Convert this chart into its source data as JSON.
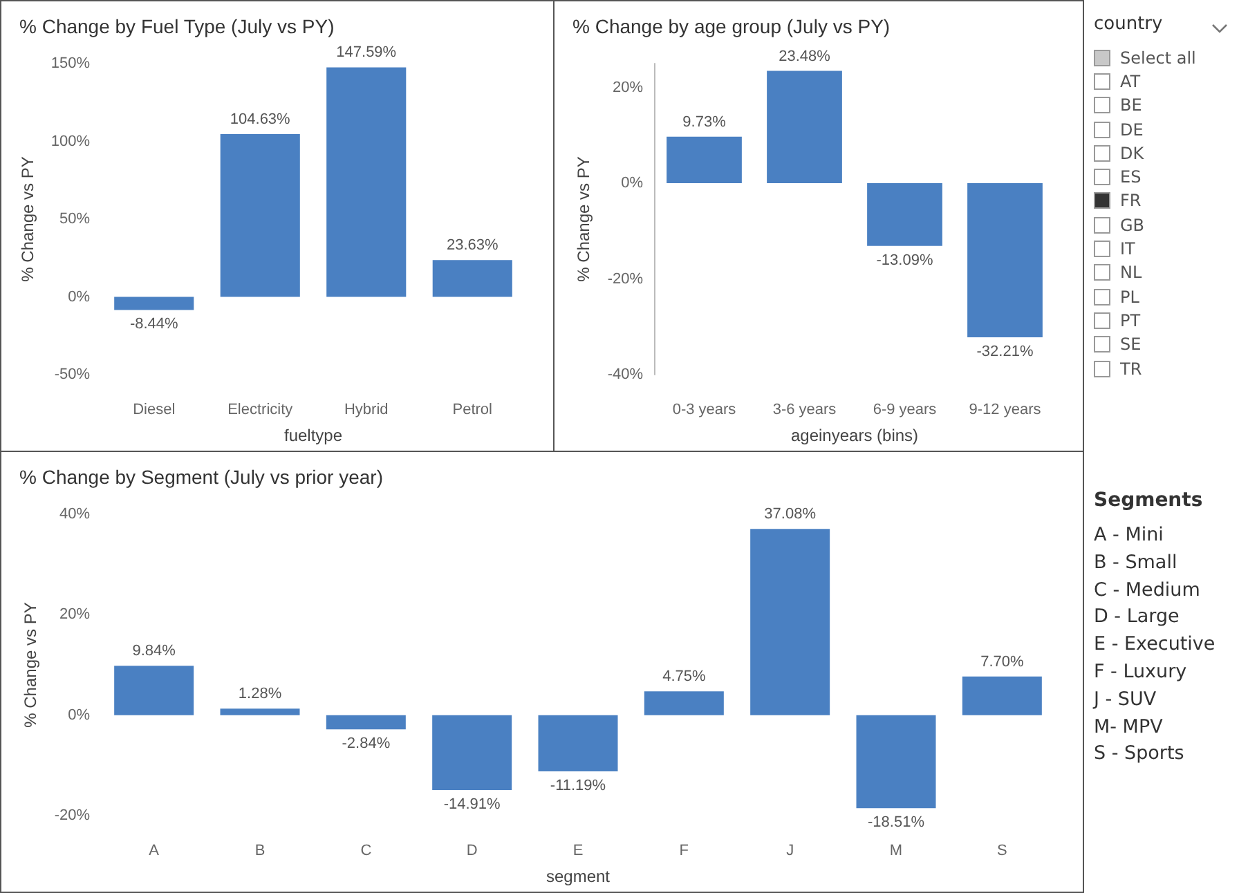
{
  "chart_data": [
    {
      "type": "bar",
      "title": "% Change by Fuel Type (July vs PY)",
      "xlabel": "fueltype",
      "ylabel": "% Change vs PY",
      "categories": [
        "Diesel",
        "Electricity",
        "Hybrid",
        "Petrol"
      ],
      "values": [
        -8.44,
        104.63,
        147.59,
        23.63
      ],
      "value_labels": [
        "-8.44%",
        "104.63%",
        "147.59%",
        "23.63%"
      ],
      "color": "#4a80c2",
      "ylim": [
        -50,
        150
      ],
      "yticks": [
        {
          "value": -50,
          "label": "-50%"
        },
        {
          "value": 0,
          "label": "0%"
        },
        {
          "value": 50,
          "label": "50%"
        },
        {
          "value": 100,
          "label": "100%"
        },
        {
          "value": 150,
          "label": "150%"
        }
      ],
      "grid": false
    },
    {
      "type": "bar",
      "title": "% Change by age group (July vs PY)",
      "xlabel": "ageinyears (bins)",
      "ylabel": "% Change vs PY",
      "categories": [
        "0-3 years",
        "3-6 years",
        "6-9 years",
        "9-12 years"
      ],
      "values": [
        9.73,
        23.48,
        -13.09,
        -32.21
      ],
      "value_labels": [
        "9.73%",
        "23.48%",
        "-13.09%",
        "-32.21%"
      ],
      "color": "#4a80c2",
      "ylim": [
        -40,
        25
      ],
      "yticks": [
        {
          "value": -40,
          "label": "-40%"
        },
        {
          "value": -20,
          "label": "-20%"
        },
        {
          "value": 0,
          "label": "0%"
        },
        {
          "value": 20,
          "label": "20%"
        }
      ],
      "grid": false
    },
    {
      "type": "other",
      "title": "country",
      "categories": [
        "Select all",
        "AT",
        "BE",
        "DE",
        "DK",
        "ES",
        "FR",
        "GB",
        "IT",
        "NL",
        "PL",
        "PT",
        "SE",
        "TR"
      ],
      "colors": [
        "#c8c8c8",
        "#ffffff",
        "#ffffff",
        "#ffffff",
        "#ffffff",
        "#ffffff",
        "#333333",
        "#ffffff",
        "#ffffff",
        "#ffffff",
        "#ffffff",
        "#ffffff",
        "#ffffff",
        "#ffffff"
      ]
    },
    {
      "type": "bar",
      "title": "% Change by Segment (July vs prior year)",
      "xlabel": "segment",
      "ylabel": "% Change vs PY",
      "categories": [
        "A",
        "B",
        "C",
        "D",
        "E",
        "F",
        "J",
        "M",
        "S"
      ],
      "values": [
        9.84,
        1.28,
        -2.84,
        -14.91,
        -11.19,
        4.75,
        37.08,
        -18.51,
        7.7
      ],
      "value_labels": [
        "9.84%",
        "1.28%",
        "-2.84%",
        "-14.91%",
        "-11.19%",
        "4.75%",
        "37.08%",
        "-18.51%",
        "7.70%"
      ],
      "color": "#4a80c2",
      "ylim": [
        -20,
        40
      ],
      "yticks": [
        {
          "value": -20,
          "label": "-20%"
        },
        {
          "value": 0,
          "label": "0%"
        },
        {
          "value": 20,
          "label": "20%"
        },
        {
          "value": 40,
          "label": "40%"
        }
      ],
      "grid": false
    },
    {
      "type": "other",
      "title": "Segments",
      "annotations": [
        "A - Mini",
        "B - Small",
        "C - Medium",
        "D - Large",
        "E - Executive",
        "F - Luxury",
        "J - SUV",
        "M- MPV",
        "S - Sports"
      ]
    }
  ]
}
